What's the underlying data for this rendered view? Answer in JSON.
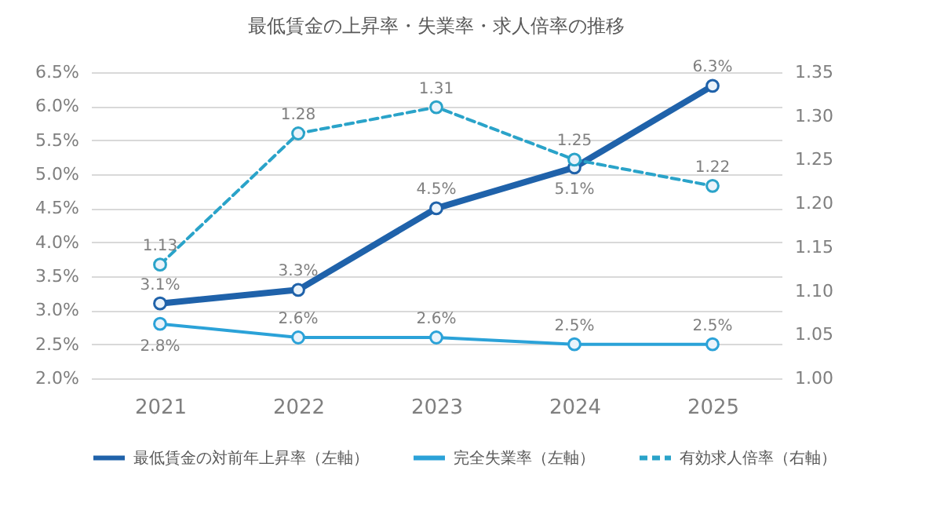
{
  "chart_data": {
    "type": "line",
    "title": "最低賃金の上昇率・失業率・求人倍率の推移",
    "categories": [
      "2021",
      "2022",
      "2023",
      "2024",
      "2025"
    ],
    "series": [
      {
        "name": "最低賃金の対前年上昇率（左軸）",
        "color": "#1f62aa",
        "values": [
          3.1,
          3.3,
          4.5,
          5.1,
          6.3
        ],
        "value_labels": [
          "3.1%",
          "3.3%",
          "4.5%",
          "5.1%",
          "6.3%"
        ]
      },
      {
        "name": "完全失業率（左軸）",
        "color": "#2ba2d8",
        "values": [
          2.8,
          2.6,
          2.6,
          2.5,
          2.5
        ],
        "value_labels": [
          "2.8%",
          "2.6%",
          "2.6%",
          "2.5%",
          "2.5%"
        ]
      },
      {
        "name": "有効求人倍率（右軸）",
        "color": "#2aa3c9",
        "axis": "y2",
        "line_style": "dashed",
        "values": [
          1.13,
          1.28,
          1.31,
          1.25,
          1.22
        ],
        "value_labels": [
          "1.13",
          "1.28",
          "1.31",
          "1.25",
          "1.22"
        ]
      }
    ],
    "ylim": [
      2.0,
      6.5
    ],
    "yticks": [
      {
        "value": 2.0,
        "label": "2.0%"
      },
      {
        "value": 2.5,
        "label": "2.5%"
      },
      {
        "value": 3.0,
        "label": "3.0%"
      },
      {
        "value": 3.5,
        "label": "3.5%"
      },
      {
        "value": 4.0,
        "label": "4.0%"
      },
      {
        "value": 4.5,
        "label": "4.5%"
      },
      {
        "value": 5.0,
        "label": "5.0%"
      },
      {
        "value": 5.5,
        "label": "5.5%"
      },
      {
        "value": 6.0,
        "label": "6.0%"
      },
      {
        "value": 6.5,
        "label": "6.5%"
      }
    ],
    "y2lim": [
      1.0,
      1.35
    ],
    "y2ticks": [
      {
        "value": 1.0,
        "label": "1.00"
      },
      {
        "value": 1.05,
        "label": "1.05"
      },
      {
        "value": 1.1,
        "label": "1.10"
      },
      {
        "value": 1.15,
        "label": "1.15"
      },
      {
        "value": 1.2,
        "label": "1.20"
      },
      {
        "value": 1.25,
        "label": "1.25"
      },
      {
        "value": 1.3,
        "label": "1.30"
      },
      {
        "value": 1.35,
        "label": "1.35"
      }
    ],
    "grid": "y",
    "legend": "bottom",
    "marker": "circle",
    "line_style": "solid"
  }
}
